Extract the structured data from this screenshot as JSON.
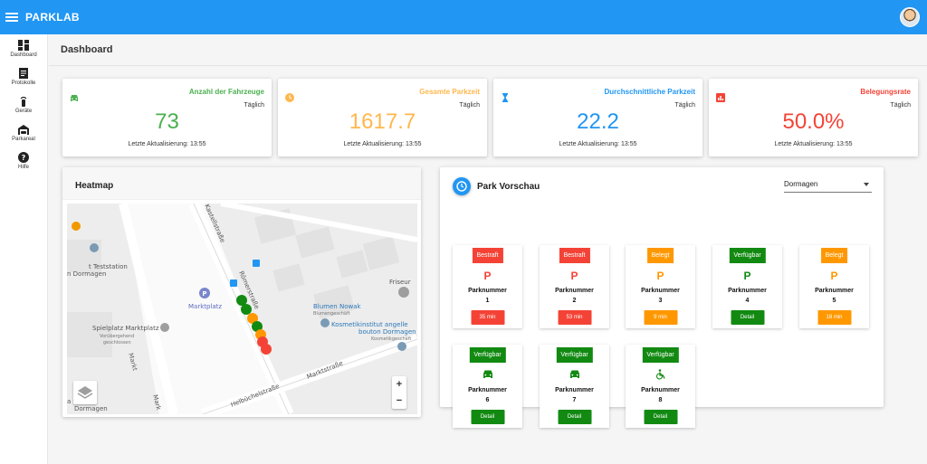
{
  "app": {
    "title": "PARKLAB"
  },
  "sidebar": {
    "items": [
      {
        "label": "Dashboard",
        "icon": "dashboard-icon"
      },
      {
        "label": "Protokolle",
        "icon": "document-icon"
      },
      {
        "label": "Geräte",
        "icon": "sensor-icon"
      },
      {
        "label": "Parkareal",
        "icon": "garage-icon"
      },
      {
        "label": "Hilfe",
        "icon": "help-icon"
      }
    ]
  },
  "page": {
    "title": "Dashboard"
  },
  "stats": [
    {
      "title": "Anzahl der Fahrzeuge",
      "period": "Täglich",
      "value": "73",
      "update": "Letzte Aktualisierung: 13:55",
      "color": "#4caf50",
      "icon": "car-icon"
    },
    {
      "title": "Gesamte Parkzeit",
      "period": "Täglich",
      "value": "1617.7",
      "update": "Letzte Aktualisierung: 13:55",
      "color": "#ffb74d",
      "icon": "clock-icon"
    },
    {
      "title": "Durchschnittliche Parkzeit",
      "period": "Täglich",
      "value": "22.2",
      "update": "Letzte Aktualisierung: 13:55",
      "color": "#2196f3",
      "icon": "hourglass-icon"
    },
    {
      "title": "Belegungsrate",
      "period": "Täglich",
      "value": "50.0%",
      "update": "Letzte Aktualisierung: 13:55",
      "color": "#f44336",
      "icon": "bar-chart-icon"
    }
  ],
  "heatmap": {
    "title": "Heatmap",
    "map_labels": {
      "teststation": "t Teststation",
      "teststation2": "n Dormagen",
      "marktplatz": "Marktplatz",
      "spielplatz": "Spielplatz Marktplatz",
      "spielplatz_sub": "Vorübergehend",
      "spielplatz_sub2": "geschlossen",
      "markt": "Markt",
      "roemerstrasse": "Römerstraße",
      "kastellstrasse": "Kastellstraße",
      "blumen": "Blumen Nowak",
      "blumen_sub": "Blumengeschäft",
      "kosmetik": "Kosmetikinstitut angelle",
      "kosmetik2": "bouton Dormagen",
      "kosmetik_sub": "Kosmetikgeschäft",
      "friseur": "Friseur",
      "marktstrasse": "Marktstraße",
      "helbuechel": "Helbüchelstraße",
      "thek": "a    thek",
      "dormagen": "Dormagen",
      "mark2": "Mark"
    },
    "zoom_in": "+",
    "zoom_out": "−"
  },
  "park": {
    "title": "Park Vorschau",
    "select_value": "Dormagen",
    "slot_label": "Parknummer",
    "slots": [
      {
        "status": "Bestraft",
        "status_color": "#f44336",
        "symbol": "P",
        "symbol_color": "#f44336",
        "num": "1",
        "action": "35 min",
        "action_color": "#f44336"
      },
      {
        "status": "Bestraft",
        "status_color": "#f44336",
        "symbol": "P",
        "symbol_color": "#f44336",
        "num": "2",
        "action": "53 min",
        "action_color": "#f44336"
      },
      {
        "status": "Belegt",
        "status_color": "#ff9800",
        "symbol": "P",
        "symbol_color": "#ff9800",
        "num": "3",
        "action": "9 min",
        "action_color": "#ff9800"
      },
      {
        "status": "Verfügbar",
        "status_color": "#128a12",
        "symbol": "P",
        "symbol_color": "#128a12",
        "num": "4",
        "action": "Detail",
        "action_color": "#128a12"
      },
      {
        "status": "Belegt",
        "status_color": "#ff9800",
        "symbol": "P",
        "symbol_color": "#ff9800",
        "num": "5",
        "action": "18 min",
        "action_color": "#ff9800"
      },
      {
        "status": "Verfügbar",
        "status_color": "#128a12",
        "symbol": "car",
        "symbol_color": "#128a12",
        "num": "6",
        "action": "Detail",
        "action_color": "#128a12"
      },
      {
        "status": "Verfügbar",
        "status_color": "#128a12",
        "symbol": "car",
        "symbol_color": "#128a12",
        "num": "7",
        "action": "Detail",
        "action_color": "#128a12"
      },
      {
        "status": "Verfügbar",
        "status_color": "#128a12",
        "symbol": "wheelchair",
        "symbol_color": "#128a12",
        "num": "8",
        "action": "Detail",
        "action_color": "#128a12"
      }
    ]
  }
}
